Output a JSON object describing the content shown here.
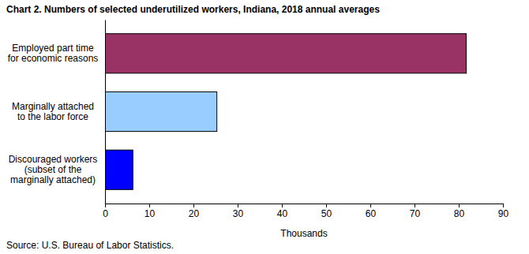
{
  "chart_data": {
    "type": "bar",
    "title": "Chart 2. Numbers of selected underutilized workers, Indiana, 2018 annual averages",
    "orientation": "horizontal",
    "categories": [
      "Employed part time\nfor economic reasons",
      "Marginally attached\nto the labor force",
      "Discouraged workers\n(subset of the\nmarginally attached)"
    ],
    "values": [
      81.7,
      25.3,
      6.3
    ],
    "colors": [
      "#993366",
      "#99ccff",
      "#0000ff"
    ],
    "xlabel": "Thousands",
    "xlim": [
      0,
      90
    ],
    "xticks": [
      0,
      10,
      20,
      30,
      40,
      50,
      60,
      70,
      80,
      90
    ],
    "source": "Source: U.S. Bureau of Labor Statistics."
  }
}
